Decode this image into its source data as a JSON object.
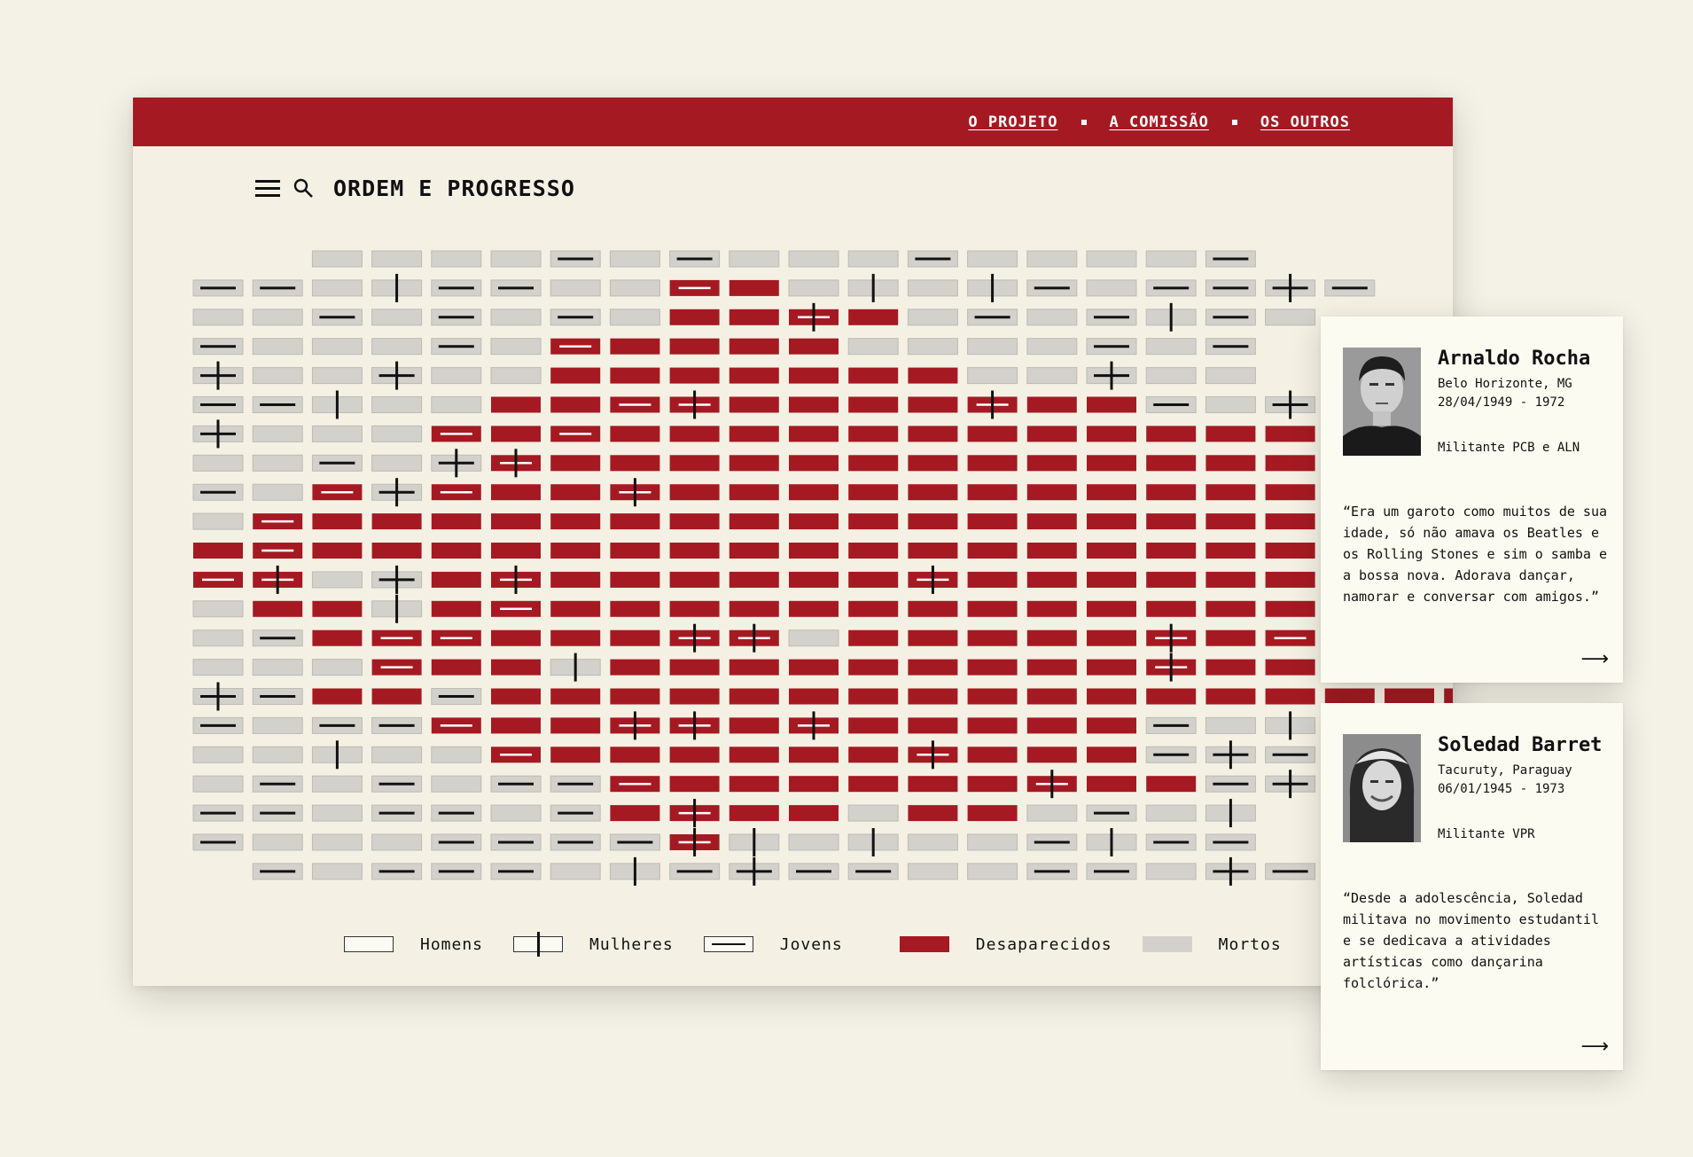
{
  "nav": {
    "links": [
      "O PROJETO",
      "A COMISSÃO",
      "OS OUTROS"
    ]
  },
  "header": {
    "title": "ORDEM E PROGRESSO",
    "menu_icon": "menu-icon",
    "search_icon": "search-icon"
  },
  "colors": {
    "brand_red": "#a51a22",
    "disappeared": "#a51a22",
    "dead": "#d3d1cb",
    "background": "#f4f1e4"
  },
  "grid": {
    "rows": [
      "..DDDDlDlDDDlDDDDl.",
      "llDmllDD=#DmDmlDllcl",
      "DDlDlDlD##s#DlDlmlD",
      "lDDDlD=####DDDDlDl",
      "cDDcDD#######DDcDD",
      "llmDD##=s####s##lDc",
      "cDDD=#=############l",
      "DDlDcs##################DDl",
      "lD=c=##s##############DDl",
      "D=######################=l",
      "#=##########################",
      "=sDc#s######s######ss=",
      "D##m#=##################m",
      "Dl#==###ssD#####s#=#=Dm",
      "DDD=##m#########s##D#Ds",
      "cl##l####################clcDc",
      "lDll=##ss#s#####lDm#l",
      "DDmDD=######s###lcll",
      "DlDlDll=######s##lclD",
      "llDllDl#s##D##DlDm",
      "lDDDllllsmDmDDlmll",
      ".lDlllDmlcllDDllDcl"
    ],
    "legend": [
      "Homens",
      "Mulheres",
      "Jovens",
      "Desaparecidos",
      "Mortos"
    ]
  },
  "cards": [
    {
      "name": "Arnaldo Rocha",
      "place": "Belo Horizonte, MG",
      "dates": "28/04/1949 - 1972",
      "role": "Militante PCB e ALN",
      "quote": "“Era um garoto como muitos de sua idade, só não amava os Beatles e os Rolling Stones e sim o samba e a bossa nova. Adorava dançar, namorar e conversar com amigos.”",
      "arrow": "⟶"
    },
    {
      "name": "Soledad Barret",
      "place": "Tacuruty, Paraguay",
      "dates": "06/01/1945 - 1973",
      "role": "Militante VPR",
      "quote": "“Desde a adolescência, Soledad militava no movimento estudantil e se dedicava a atividades artísticas como dançarina folclórica.”",
      "arrow": "⟶"
    }
  ]
}
